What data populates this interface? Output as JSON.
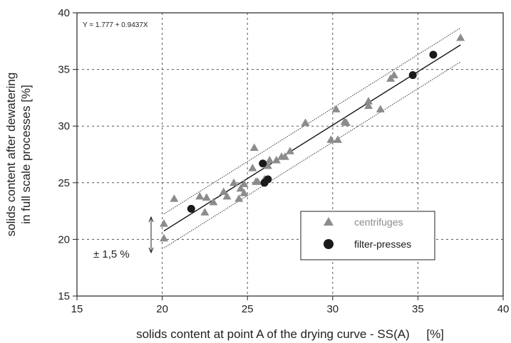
{
  "chart_data": {
    "type": "scatter",
    "xlabel": "solids content at point A of the drying curve - SS(A)     [%]",
    "ylabel_lines": [
      "solids content after dewatering",
      "in full scale processes [%]"
    ],
    "xlim": [
      15,
      40
    ],
    "ylim": [
      15,
      40
    ],
    "xticks": [
      15,
      20,
      25,
      30,
      35,
      40
    ],
    "yticks": [
      15,
      20,
      25,
      30,
      35,
      40
    ],
    "x_tick_labels": [
      "15",
      "20",
      "25",
      "30",
      "35",
      "40"
    ],
    "y_tick_labels": [
      "15",
      "20",
      "25",
      "30",
      "35",
      "40"
    ],
    "grid": true,
    "regression": {
      "intercept": 1.777,
      "slope": 0.9437,
      "x_range": [
        20.1,
        37.5
      ],
      "equation_label": "Y = 1.777 + 0.9437X"
    },
    "confidence_band": {
      "offset": 1.5,
      "label": "± 1,5 %"
    },
    "legend_position": "lower-right",
    "series": [
      {
        "name": "centrifuges",
        "marker": "triangle",
        "color": "#8c8c8c",
        "x": [
          20.1,
          20.1,
          20.7,
          22.2,
          22.5,
          22.6,
          23.0,
          23.6,
          23.8,
          24.2,
          24.5,
          24.6,
          24.8,
          24.8,
          25.3,
          25.4,
          25.5,
          25.6,
          26.0,
          26.2,
          26.3,
          26.7,
          27.0,
          27.2,
          27.5,
          28.4,
          29.9,
          30.2,
          30.3,
          30.7,
          30.8,
          32.1,
          32.1,
          32.8,
          33.4,
          33.6,
          37.5
        ],
        "y": [
          21.4,
          20.1,
          23.6,
          23.8,
          22.4,
          23.7,
          23.3,
          24.2,
          23.8,
          25.0,
          23.6,
          24.5,
          24.9,
          24.1,
          26.3,
          28.1,
          25.1,
          25.1,
          25.3,
          26.5,
          27.0,
          27.0,
          27.3,
          27.3,
          27.8,
          30.3,
          28.8,
          31.5,
          28.8,
          30.4,
          30.3,
          32.2,
          31.8,
          31.5,
          34.2,
          34.5,
          37.8
        ]
      },
      {
        "name": "filter-presses",
        "marker": "circle",
        "color": "#1a1a1a",
        "x": [
          21.7,
          25.9,
          26.0,
          26.2,
          34.7,
          35.9
        ],
        "y": [
          22.7,
          26.7,
          25.0,
          25.3,
          34.5,
          36.3
        ]
      }
    ]
  }
}
